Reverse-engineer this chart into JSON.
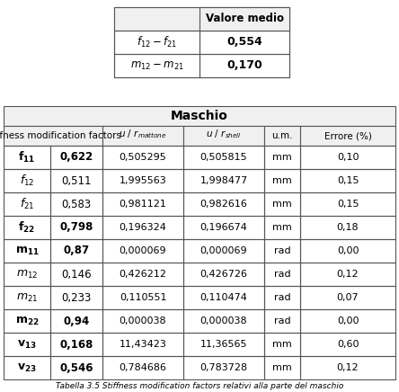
{
  "top_table": {
    "col1_texts": [
      "$f_{12} - f_{21}$",
      "$m_{12} - m_{21}$"
    ],
    "col2_texts": [
      "0,554",
      "0,170"
    ],
    "header": "Valore medio"
  },
  "main_table": {
    "title": "Maschio",
    "sym_letters": [
      "f",
      "f",
      "f",
      "f",
      "m",
      "m",
      "m",
      "m",
      "v",
      "v"
    ],
    "sym_subs": [
      "11",
      "12",
      "21",
      "22",
      "11",
      "12",
      "21",
      "22",
      "13",
      "23"
    ],
    "col2": [
      "0,622",
      "0,511",
      "0,583",
      "0,798",
      "0,87",
      "0,146",
      "0,233",
      "0,94",
      "0,168",
      "0,546"
    ],
    "col3": [
      "0,505295",
      "1,995563",
      "0,981121",
      "0,196324",
      "0,000069",
      "0,426212",
      "0,110551",
      "0,000038",
      "11,43423",
      "0,784686"
    ],
    "col4": [
      "0,505815",
      "1,998477",
      "0,982616",
      "0,196674",
      "0,000069",
      "0,426726",
      "0,110474",
      "0,000038",
      "11,36565",
      "0,783728"
    ],
    "col5": [
      "mm",
      "mm",
      "mm",
      "mm",
      "rad",
      "rad",
      "rad",
      "rad",
      "mm",
      "mm"
    ],
    "col6": [
      "0,10",
      "0,15",
      "0,15",
      "0,18",
      "0,00",
      "0,12",
      "0,07",
      "0,00",
      "0,60",
      "0,12"
    ],
    "bold_rows": [
      0,
      3,
      4,
      7,
      8,
      9
    ]
  },
  "caption": "Tabella 3.5 Stiffness modification factors relativi alla parte del maschio",
  "bg_color": "#ffffff",
  "light_gray": "#f0f0f0",
  "border_color": "#555555"
}
